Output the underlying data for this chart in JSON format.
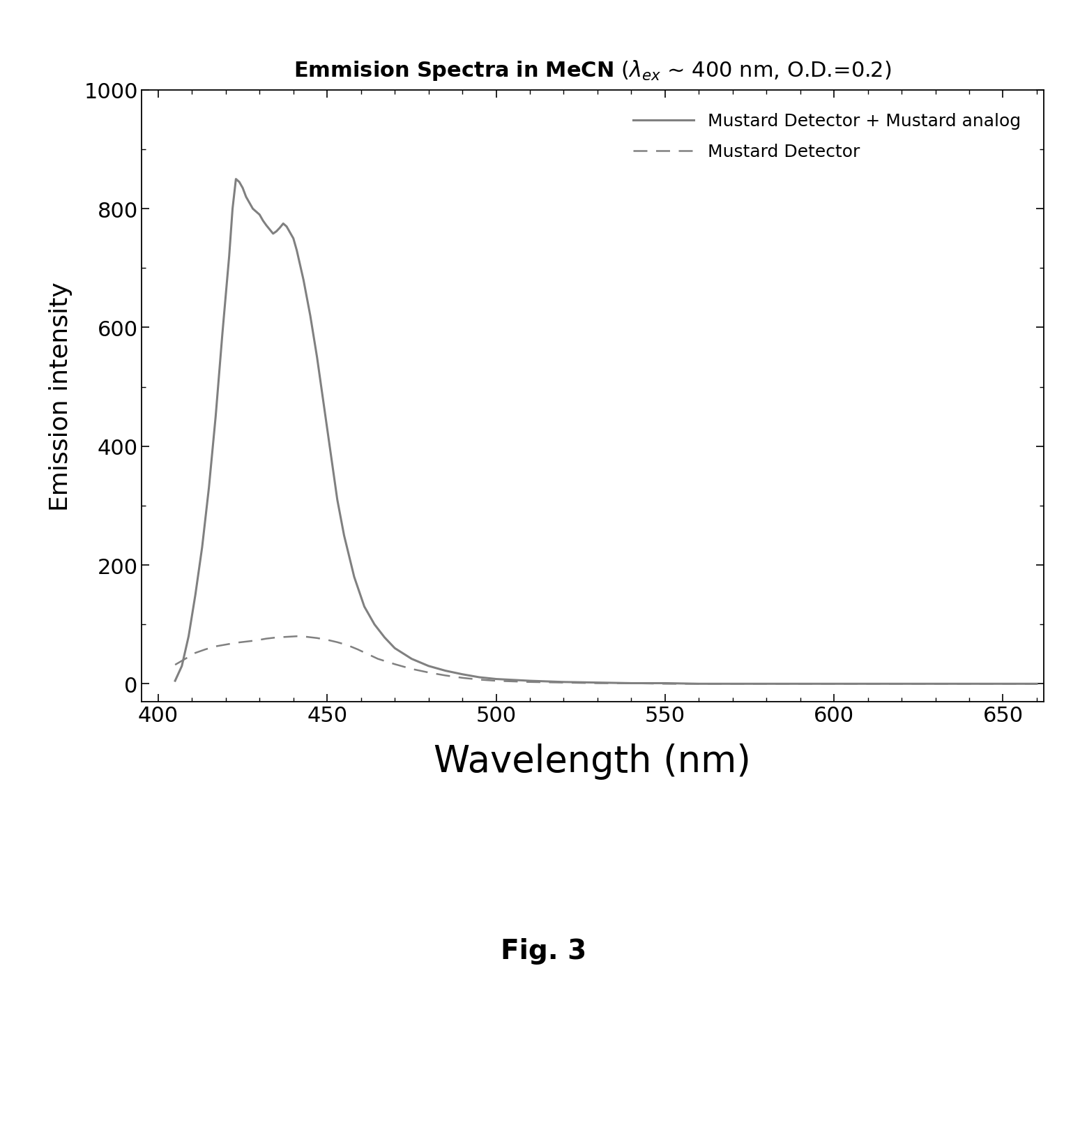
{
  "title_text": "Emmision Spectra in MeCN (λₑₓ ~ 400 nm, O.D.=0.2)",
  "xlabel": "Wavelength (nm)",
  "ylabel": "Emission intensity",
  "xlim": [
    395,
    662
  ],
  "ylim": [
    -30,
    1000
  ],
  "yticks": [
    0,
    200,
    400,
    600,
    800,
    1000
  ],
  "xticks": [
    400,
    450,
    500,
    550,
    600,
    650
  ],
  "line_color": "#808080",
  "fig_label": "Fig. 3",
  "legend_solid": "Mustard Detector + Mustard analog",
  "legend_dashed": "Mustard Detector",
  "solid_x": [
    405,
    407,
    409,
    411,
    413,
    415,
    417,
    419,
    421,
    422,
    423,
    424,
    425,
    426,
    427,
    428,
    429,
    430,
    431,
    432,
    433,
    434,
    435,
    436,
    437,
    438,
    439,
    440,
    441,
    442,
    443,
    445,
    447,
    449,
    451,
    453,
    455,
    458,
    461,
    464,
    467,
    470,
    475,
    480,
    485,
    490,
    495,
    500,
    510,
    520,
    530,
    540,
    550,
    560,
    580,
    600,
    630,
    660
  ],
  "solid_y": [
    5,
    30,
    80,
    150,
    230,
    330,
    450,
    590,
    720,
    800,
    850,
    845,
    835,
    820,
    810,
    800,
    795,
    790,
    780,
    772,
    765,
    758,
    762,
    768,
    775,
    770,
    760,
    750,
    730,
    705,
    680,
    620,
    550,
    470,
    390,
    310,
    250,
    180,
    130,
    100,
    78,
    60,
    42,
    30,
    22,
    16,
    11,
    8,
    5,
    3,
    2,
    1,
    1,
    0,
    0,
    0,
    0,
    0
  ],
  "dashed_x": [
    405,
    408,
    411,
    414,
    417,
    420,
    423,
    426,
    429,
    432,
    435,
    438,
    441,
    444,
    447,
    450,
    453,
    456,
    459,
    462,
    465,
    470,
    475,
    480,
    485,
    490,
    495,
    500,
    510,
    520,
    530,
    540,
    550,
    560,
    580,
    600,
    630,
    660
  ],
  "dashed_y": [
    32,
    42,
    52,
    58,
    63,
    66,
    69,
    71,
    73,
    76,
    78,
    79,
    80,
    79,
    77,
    74,
    70,
    65,
    58,
    50,
    42,
    33,
    25,
    19,
    14,
    10,
    7,
    5,
    3,
    2,
    1,
    1,
    0,
    0,
    0,
    0,
    0,
    0
  ]
}
